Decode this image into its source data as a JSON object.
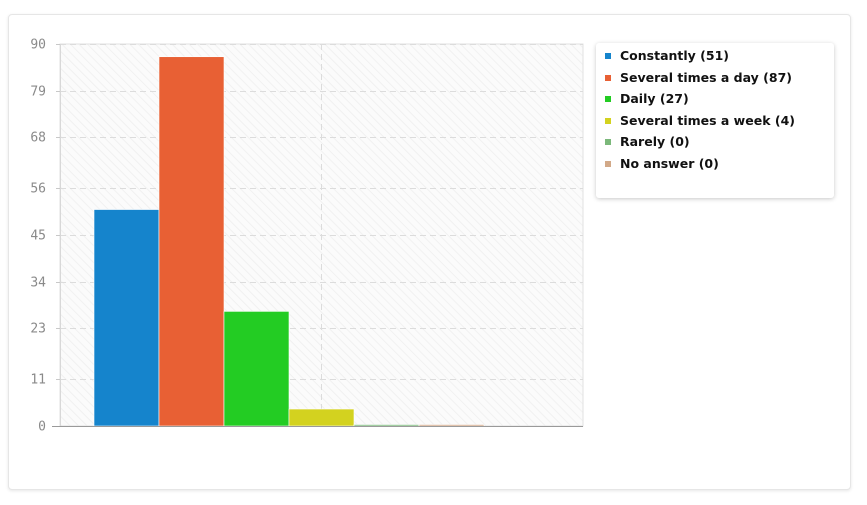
{
  "chart_data": {
    "type": "bar",
    "categories": [
      "Constantly",
      "Several times a day",
      "Daily",
      "Several times a week",
      "Rarely",
      "No answer"
    ],
    "values": [
      51,
      87,
      27,
      4,
      0,
      0
    ],
    "colors": [
      "#1584cc",
      "#e86034",
      "#23cc23",
      "#d3d21f",
      "#7bb87a",
      "#d2a988"
    ],
    "y_ticks": [
      "0",
      "11",
      "23",
      "34",
      "45",
      "56",
      "68",
      "79",
      "90"
    ],
    "ylim": [
      0,
      90
    ],
    "grid": true,
    "legend_position": "right",
    "legend": [
      "Constantly (51)",
      "Several times a day (87)",
      "Daily (27)",
      "Several times a week (4)",
      "Rarely (0)",
      "No answer (0)"
    ]
  }
}
